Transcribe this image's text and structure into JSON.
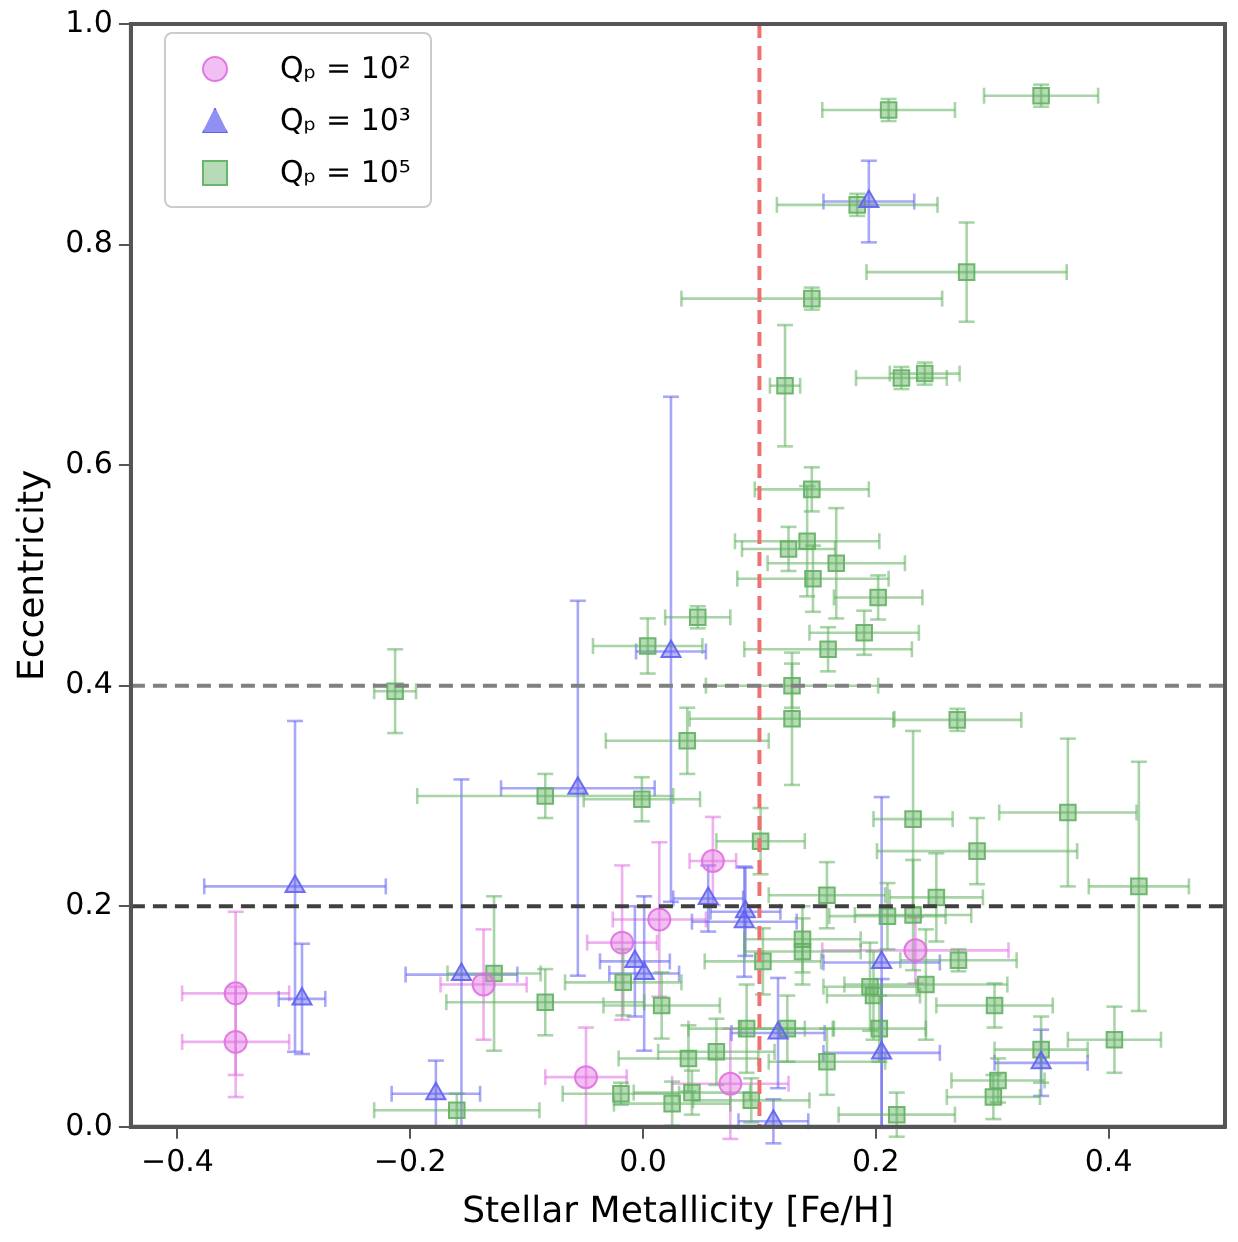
{
  "chart_data": {
    "type": "scatter",
    "xlabel": "Stellar Metallicity [Fe/H]",
    "ylabel": "Eccentricity",
    "xlim": [
      -0.44,
      0.5
    ],
    "ylim": [
      0,
      1
    ],
    "xticks": [
      {
        "value": -0.4,
        "label": "−0.4"
      },
      {
        "value": -0.2,
        "label": "−0.2"
      },
      {
        "value": 0,
        "label": "0.0"
      },
      {
        "value": 0.2,
        "label": "0.2"
      },
      {
        "value": 0.4,
        "label": "0.4"
      }
    ],
    "yticks": [
      {
        "value": 0,
        "label": "0.0"
      },
      {
        "value": 0.2,
        "label": "0.2"
      },
      {
        "value": 0.4,
        "label": "0.4"
      },
      {
        "value": 0.6,
        "label": "0.6"
      },
      {
        "value": 0.8,
        "label": "0.8"
      },
      {
        "value": 1,
        "label": "1.0"
      }
    ],
    "legend": "top left",
    "grid": false,
    "ref_lines": [
      {
        "axis": "x",
        "value": 0.1,
        "color": "#f07070",
        "line_style": "dashed"
      },
      {
        "axis": "y",
        "value": 0.4,
        "color": "#808080",
        "line_style": "dashed"
      },
      {
        "axis": "y",
        "value": 0.2,
        "color": "#404040",
        "line_style": "dashed"
      }
    ],
    "series": [
      {
        "name": "Qₚ = 10²",
        "color": "#e070e0",
        "marker": "circle",
        "x": [
          -0.35,
          -0.35,
          -0.137,
          -0.049,
          -0.018,
          0.014,
          0.06,
          0.234,
          0.075
        ],
        "values": [
          0.121,
          0.077,
          0.129,
          0.045,
          0.167,
          0.188,
          0.241,
          0.16,
          0.039
        ],
        "errors": [
          0.074,
          0.05,
          0.05,
          0.045,
          0.07,
          0.07,
          0.04,
          0.03,
          0.05
        ],
        "xerrors": [
          0.046,
          0.046,
          0.037,
          0.035,
          0.03,
          0.04,
          0.02,
          0.08,
          0.05
        ]
      },
      {
        "name": "Qₚ = 10³",
        "color": "#6060f0",
        "marker": "triangle",
        "x": [
          0.194,
          0.024,
          -0.299,
          -0.293,
          -0.156,
          -0.178,
          -0.056,
          -0.007,
          0.001,
          0.056,
          0.088,
          0.087,
          0.205,
          0.205,
          0.116,
          0.342,
          0.112
        ],
        "values": [
          0.839,
          0.431,
          0.218,
          0.116,
          0.138,
          0.03,
          0.307,
          0.15,
          0.139,
          0.207,
          0.195,
          0.186,
          0.149,
          0.067,
          0.085,
          0.058,
          0.005
        ],
        "errors": [
          0.037,
          [
            0.204,
            0.662
          ],
          0.15,
          0.05,
          [
            0,
            0.315
          ],
          0.03,
          0.17,
          0.05,
          0.07,
          0.03,
          0.04,
          0.05,
          0.15,
          0.067,
          0.05,
          0.03,
          0.02
        ],
        "xerrors": [
          0.039,
          0.03,
          0.078,
          0.02,
          0.048,
          0.038,
          0.066,
          0.03,
          0.03,
          0.03,
          0.03,
          0.045,
          0.05,
          0.05,
          0.04,
          0.04,
          0.03
        ]
      },
      {
        "name": "Qₚ = 10⁵",
        "color": "#60b060",
        "marker": "square",
        "x": [
          0.211,
          0.342,
          0.184,
          0.278,
          0.145,
          0.122,
          0.222,
          0.242,
          0.145,
          0.141,
          0.125,
          0.166,
          0.146,
          0.202,
          0.047,
          0.19,
          0.159,
          0.004,
          0.128,
          0.128,
          0.27,
          0.038,
          -0.001,
          -0.084,
          0.232,
          0.365,
          0.287,
          0.426,
          0.101,
          0.158,
          0.252,
          0.21,
          0.232,
          0.137,
          0.137,
          0.103,
          0.271,
          0.195,
          0.198,
          0.243,
          0.302,
          0.089,
          0.124,
          0.203,
          0.063,
          0.039,
          0.158,
          0.342,
          0.405,
          0.305,
          0.301,
          0.218,
          -0.019,
          0.025,
          0.042,
          0.093,
          0.016,
          -0.017,
          -0.213,
          -0.128,
          -0.084,
          -0.16
        ],
        "values": [
          0.922,
          0.935,
          0.836,
          0.775,
          0.751,
          0.672,
          0.679,
          0.683,
          0.578,
          0.531,
          0.524,
          0.511,
          0.497,
          0.48,
          0.462,
          0.448,
          0.433,
          0.436,
          0.4,
          0.37,
          0.369,
          0.35,
          0.297,
          0.3,
          0.279,
          0.285,
          0.25,
          0.218,
          0.259,
          0.21,
          0.208,
          0.191,
          0.192,
          0.17,
          0.159,
          0.15,
          0.151,
          0.127,
          0.119,
          0.129,
          0.11,
          0.089,
          0.089,
          0.089,
          0.068,
          0.062,
          0.059,
          0.07,
          0.079,
          0.042,
          0.027,
          0.011,
          0.03,
          0.021,
          0.031,
          0.024,
          0.11,
          0.131,
          0.395,
          0.139,
          0.113,
          0.015
        ],
        "errors": [
          0.01,
          0.01,
          0.01,
          0.045,
          0.01,
          0.055,
          0.01,
          0.01,
          0.02,
          0.05,
          0.02,
          0.05,
          0.03,
          0.02,
          0.01,
          0.02,
          0.02,
          0.025,
          0.02,
          0.06,
          0.01,
          0.03,
          0.02,
          0.02,
          0.08,
          0.067,
          0.03,
          0.113,
          0.03,
          0.03,
          0.04,
          0.03,
          0.05,
          0.03,
          0.03,
          0.03,
          0.01,
          0.04,
          0.04,
          0.05,
          0.02,
          0.04,
          0.03,
          0.03,
          0.03,
          0.03,
          0.03,
          0.03,
          0.03,
          0.02,
          0.02,
          0.02,
          0.01,
          0.02,
          0.02,
          0.02,
          0.03,
          0.03,
          0.038,
          0.07,
          0.03,
          0.015
        ],
        "xerrors": [
          0.057,
          0.049,
          0.069,
          0.086,
          0.112,
          0.013,
          0.039,
          0.03,
          0.049,
          0.062,
          0.04,
          0.059,
          0.065,
          0.038,
          0.028,
          0.047,
          0.072,
          0.047,
          0.074,
          0.088,
          0.055,
          0.07,
          0.05,
          0.11,
          0.034,
          0.059,
          0.086,
          0.043,
          0.038,
          0.05,
          0.04,
          0.05,
          0.05,
          0.05,
          0.05,
          0.05,
          0.05,
          0.04,
          0.04,
          0.07,
          0.05,
          0.05,
          0.04,
          0.04,
          0.05,
          0.06,
          0.05,
          0.04,
          0.04,
          0.04,
          0.04,
          0.05,
          0.05,
          0.05,
          0.05,
          0.05,
          0.05,
          0.05,
          0.018,
          0.04,
          0.085,
          0.071
        ]
      }
    ]
  }
}
